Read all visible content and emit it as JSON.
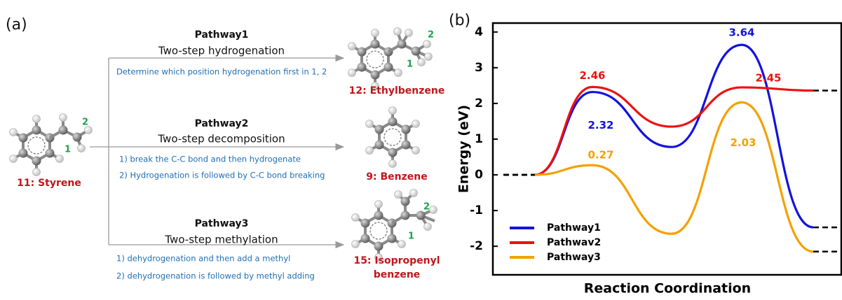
{
  "panel_a": {
    "label": "(a)",
    "reactant": {
      "name": "11: Styrene",
      "sites": [
        "1",
        "2"
      ]
    },
    "pathways": [
      {
        "title": "Pathway1",
        "subtitle": "Two-step hydrogenation",
        "notes": [
          "Determine which position hydrogenation first  in 1, 2"
        ],
        "product": {
          "name": [
            "12: Ethylbenzene"
          ],
          "sites": [
            "1",
            "2"
          ]
        }
      },
      {
        "title": "Pathway2",
        "subtitle": "Two-step decomposition",
        "notes": [
          "1)  break the C-C bond and then hydrogenate",
          "2)  Hydrogenation is followed by C-C bond breaking"
        ],
        "product": {
          "name": [
            "9: Benzene"
          ]
        }
      },
      {
        "title": "Pathway3",
        "subtitle": "Two-step methylation",
        "notes": [
          "1)  dehydrogenation and then add a methyl",
          "2)   dehydrogenation is followed by methyl adding"
        ],
        "product": {
          "name": [
            "15: Isopropenyl",
            "benzene"
          ],
          "sites": [
            "1",
            "2"
          ]
        }
      }
    ]
  },
  "chart_data": {
    "type": "line",
    "label": "(b)",
    "ylabel": "Energy (eV)",
    "xlabel": "Reaction Coordination",
    "categories": [
      null,
      null,
      null,
      null,
      null
    ],
    "ylim": [
      -2.8,
      4.25
    ],
    "yticks": [
      -2,
      -1,
      0,
      1,
      2,
      3,
      4
    ],
    "legend": "lower left",
    "series": [
      {
        "name": "Pathway1",
        "color": "#1212e0",
        "values": [
          0,
          2.32,
          0.78,
          3.64,
          -1.47
        ],
        "value_labels": [
          null,
          "2.32",
          null,
          "3.64",
          null
        ]
      },
      {
        "name": "Pathwav2",
        "color": "#ee1111",
        "values": [
          0,
          2.46,
          1.35,
          2.45,
          2.36
        ],
        "value_labels": [
          null,
          "2.46",
          null,
          "2.45",
          null
        ]
      },
      {
        "name": "Pathway3",
        "color": "#f5a000",
        "values": [
          0,
          0.27,
          -1.65,
          2.03,
          -2.15
        ],
        "value_labels": [
          null,
          "0.27",
          null,
          "2.03",
          null
        ]
      }
    ]
  }
}
